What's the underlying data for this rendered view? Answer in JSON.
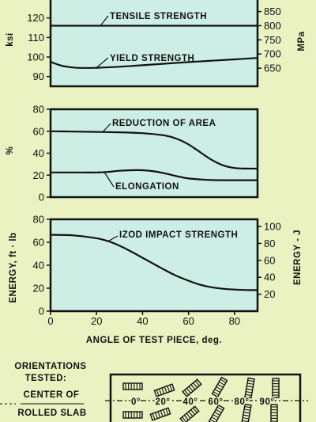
{
  "chart_data": [
    {
      "type": "line",
      "xlim": [
        0,
        90
      ],
      "ylabel": "ksi",
      "ylabel_right": "MPa",
      "ylim": [
        85,
        130
      ],
      "yticks": [
        90,
        100,
        110,
        120
      ],
      "yticks_right": [
        650,
        700,
        750,
        800,
        850
      ],
      "series": [
        {
          "name": "TENSILE STRENGTH",
          "x": [
            0,
            15,
            30,
            45,
            60,
            75,
            90
          ],
          "y": [
            116,
            116,
            116,
            116,
            116,
            116,
            116
          ]
        },
        {
          "name": "YIELD STRENGTH",
          "x": [
            0,
            5,
            10,
            15,
            20,
            30,
            40,
            50,
            60,
            70,
            80,
            90
          ],
          "y": [
            97.5,
            95.5,
            94.6,
            94.4,
            94.5,
            95.0,
            95.8,
            96.6,
            97.4,
            98.1,
            98.8,
            99.5
          ]
        }
      ]
    },
    {
      "type": "line",
      "xlim": [
        0,
        90
      ],
      "ylabel": "%",
      "ylim": [
        0,
        80
      ],
      "yticks": [
        0,
        20,
        40,
        60,
        80
      ],
      "series": [
        {
          "name": "REDUCTION OF AREA",
          "x": [
            0,
            10,
            20,
            30,
            40,
            50,
            55,
            60,
            65,
            70,
            75,
            80,
            85,
            90
          ],
          "y": [
            60,
            59.7,
            59.4,
            59,
            58.2,
            56,
            53,
            48,
            41,
            34,
            29,
            26.5,
            26,
            26
          ]
        },
        {
          "name": "ELONGATION",
          "x": [
            0,
            10,
            20,
            25,
            30,
            35,
            40,
            45,
            50,
            55,
            60,
            70,
            80,
            90
          ],
          "y": [
            22.5,
            22.5,
            22.5,
            23,
            24,
            24.5,
            24.5,
            23.5,
            21.5,
            19,
            17,
            15.6,
            15.4,
            15.4
          ]
        }
      ]
    },
    {
      "type": "line",
      "xlabel": "ANGLE OF TEST PIECE, deg.",
      "xlim": [
        0,
        90
      ],
      "xticks": [
        0,
        20,
        40,
        60,
        80
      ],
      "ylabel": "ENERGY, ft · lb",
      "ylabel_right": "ENERGY - J",
      "ylim": [
        0,
        80
      ],
      "yticks": [
        0,
        20,
        40,
        60,
        80
      ],
      "yticks_right": [
        20,
        40,
        60,
        80,
        100
      ],
      "series": [
        {
          "name": "IZOD IMPACT STRENGTH",
          "x": [
            0,
            10,
            20,
            25,
            30,
            35,
            40,
            45,
            50,
            55,
            60,
            65,
            70,
            75,
            80,
            85,
            90
          ],
          "y": [
            66.5,
            66,
            63.5,
            61,
            57,
            52,
            46.5,
            41,
            35.5,
            30.5,
            26.5,
            23,
            20.8,
            19.5,
            18.8,
            18.4,
            18.3
          ]
        }
      ]
    }
  ],
  "orientations": {
    "title_line1": "ORIENTATIONS",
    "title_line2": "TESTED:",
    "slab_line1": "CENTER OF",
    "slab_line2": "ROLLED SLAB",
    "angles": [
      "0°",
      "20°",
      "40°",
      "60°",
      "80°",
      "90°"
    ]
  },
  "colors": {
    "background": "#e9f2c0",
    "plot_fill": "#cdeee4",
    "line": "#111111"
  }
}
